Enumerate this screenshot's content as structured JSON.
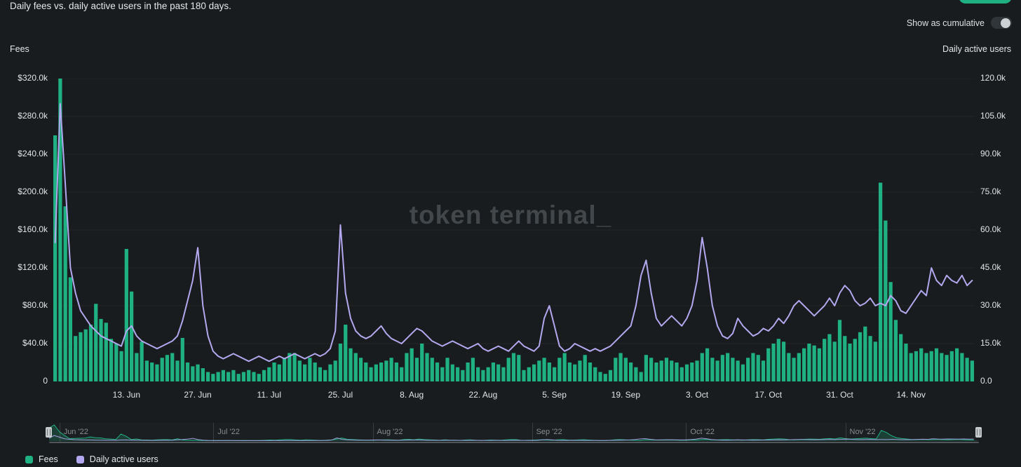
{
  "header": {
    "title": "Daily fees vs. daily active users in the past 180 days.",
    "cumulative_toggle": {
      "label": "Show as cumulative",
      "state": "off"
    }
  },
  "watermark": "token terminal_",
  "axes": {
    "left_title": "Fees",
    "right_title": "Daily active users"
  },
  "legend": {
    "items": [
      {
        "label": "Fees",
        "color": "#1fb182"
      },
      {
        "label": "Daily active users",
        "color": "#b3a8ef"
      }
    ]
  },
  "navigator": {
    "months": [
      {
        "label": "Jun '22",
        "day": 2
      },
      {
        "label": "Jul '22",
        "day": 32
      },
      {
        "label": "Aug '22",
        "day": 63
      },
      {
        "label": "Sep '22",
        "day": 94
      },
      {
        "label": "Oct '22",
        "day": 124
      },
      {
        "label": "Nov '22",
        "day": 155
      }
    ]
  },
  "colors": {
    "background": "#191c1e",
    "bar": "#1fb182",
    "line": "#b3a8ef",
    "text": "#e6e9ea",
    "muted_text": "#868c90"
  },
  "chart_data": {
    "type": "combo",
    "subtypes": [
      "bar",
      "line"
    ],
    "title": "Daily fees vs. daily active users in the past 180 days.",
    "days": 181,
    "grid": "subtle-horizontal",
    "legend_position": "bottom-left",
    "x_ticks": [
      {
        "label": "13. Jun",
        "day": 14
      },
      {
        "label": "27. Jun",
        "day": 28
      },
      {
        "label": "11. Jul",
        "day": 42
      },
      {
        "label": "25. Jul",
        "day": 56
      },
      {
        "label": "8. Aug",
        "day": 70
      },
      {
        "label": "22. Aug",
        "day": 84
      },
      {
        "label": "5. Sep",
        "day": 98
      },
      {
        "label": "19. Sep",
        "day": 112
      },
      {
        "label": "3. Oct",
        "day": 126
      },
      {
        "label": "17. Oct",
        "day": 140
      },
      {
        "label": "31. Oct",
        "day": 154
      },
      {
        "label": "14. Nov",
        "day": 168
      }
    ],
    "left_axis": {
      "title": "Fees",
      "tick_labels": [
        "$320.0k",
        "$280.0k",
        "$240.0k",
        "$200.0k",
        "$160.0k",
        "$120.0k",
        "$80.0k",
        "$40.0k",
        "0"
      ],
      "max_k": 320,
      "min_k": 0
    },
    "right_axis": {
      "title": "Daily active users",
      "tick_labels": [
        "120.0k",
        "105.0k",
        "90.0k",
        "75.0k",
        "60.0k",
        "45.0k",
        "30.0k",
        "15.0k",
        "0.0"
      ],
      "max_k": 120,
      "min_k": 0
    },
    "series": [
      {
        "name": "Fees",
        "type": "bar",
        "axis": "left",
        "unit": "USD thousands (estimated)",
        "color": "#1fb182",
        "values": [
          260,
          320,
          185,
          110,
          48,
          52,
          55,
          60,
          82,
          66,
          62,
          45,
          40,
          32,
          140,
          95,
          30,
          42,
          22,
          20,
          18,
          25,
          28,
          30,
          22,
          46,
          20,
          16,
          18,
          14,
          10,
          8,
          10,
          12,
          10,
          12,
          8,
          10,
          12,
          10,
          8,
          12,
          15,
          20,
          18,
          25,
          30,
          30,
          22,
          18,
          25,
          20,
          15,
          12,
          18,
          22,
          40,
          60,
          35,
          30,
          25,
          20,
          15,
          18,
          20,
          22,
          25,
          20,
          15,
          30,
          35,
          25,
          40,
          30,
          25,
          20,
          15,
          25,
          18,
          15,
          12,
          20,
          25,
          15,
          12,
          15,
          20,
          18,
          15,
          25,
          30,
          28,
          12,
          15,
          18,
          22,
          25,
          20,
          15,
          25,
          30,
          20,
          18,
          22,
          28,
          20,
          15,
          10,
          8,
          12,
          25,
          30,
          25,
          20,
          15,
          10,
          28,
          25,
          20,
          22,
          25,
          22,
          20,
          15,
          18,
          20,
          22,
          30,
          35,
          25,
          22,
          28,
          30,
          25,
          22,
          18,
          25,
          30,
          28,
          22,
          35,
          40,
          45,
          42,
          30,
          25,
          30,
          35,
          40,
          38,
          35,
          45,
          50,
          42,
          65,
          48,
          40,
          45,
          52,
          58,
          48,
          42,
          210,
          170,
          105,
          65,
          50,
          40,
          30,
          32,
          35,
          30,
          32,
          35,
          30,
          28,
          32,
          35,
          30,
          25,
          22
        ]
      },
      {
        "name": "Daily active users",
        "type": "line",
        "axis": "right",
        "unit": "thousands of users (estimated)",
        "color": "#b3a8ef",
        "values": [
          55,
          110,
          78,
          45,
          35,
          28,
          25,
          22,
          20,
          18,
          17,
          16,
          15,
          14,
          20,
          22,
          18,
          16,
          15,
          14,
          13,
          14,
          15,
          16,
          18,
          24,
          32,
          40,
          53,
          30,
          18,
          12,
          10,
          9,
          10,
          11,
          10,
          9,
          8,
          9,
          10,
          9,
          8,
          9,
          10,
          9,
          10,
          11,
          10,
          9,
          10,
          11,
          10,
          11,
          13,
          20,
          62,
          35,
          25,
          20,
          18,
          17,
          18,
          20,
          22,
          19,
          17,
          16,
          15,
          17,
          19,
          21,
          20,
          18,
          16,
          15,
          14,
          15,
          16,
          15,
          14,
          13,
          14,
          15,
          13,
          12,
          13,
          14,
          13,
          12,
          14,
          16,
          14,
          13,
          12,
          14,
          25,
          30,
          22,
          14,
          12,
          13,
          15,
          14,
          13,
          12,
          13,
          12,
          13,
          14,
          16,
          18,
          20,
          22,
          30,
          42,
          48,
          35,
          25,
          22,
          24,
          26,
          24,
          22,
          25,
          30,
          40,
          57,
          45,
          30,
          22,
          18,
          17,
          19,
          25,
          22,
          20,
          18,
          19,
          21,
          20,
          22,
          25,
          23,
          26,
          30,
          32,
          30,
          28,
          26,
          28,
          30,
          33,
          30,
          35,
          38,
          36,
          32,
          30,
          31,
          33,
          30,
          31,
          30,
          34,
          32,
          28,
          27,
          30,
          33,
          36,
          34,
          45,
          40,
          38,
          42,
          40,
          39,
          42,
          38,
          40
        ]
      }
    ]
  }
}
